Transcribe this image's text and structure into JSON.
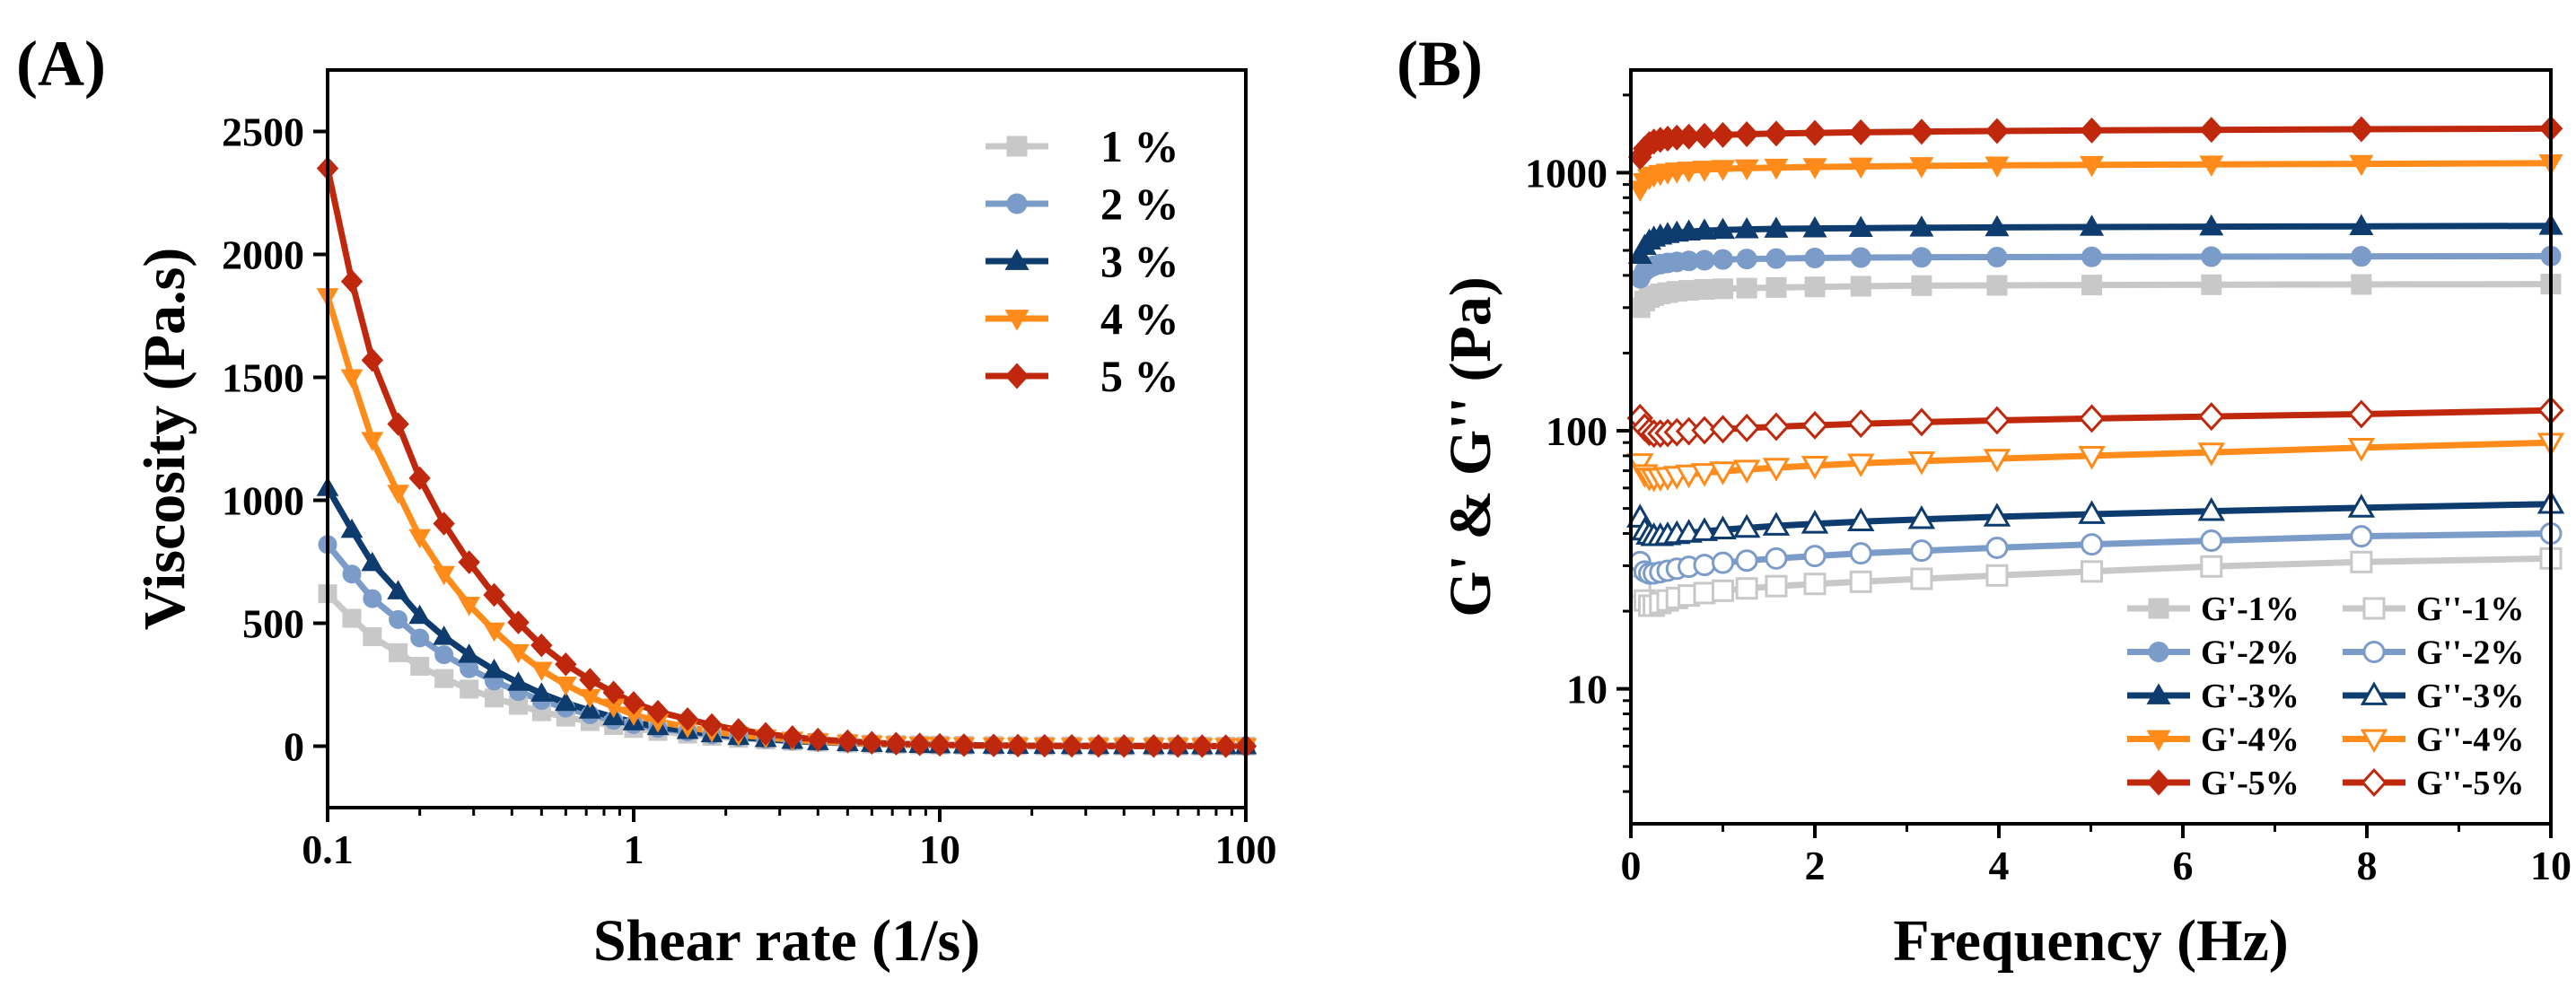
{
  "chart_data": [
    {
      "panel": "(A)",
      "type": "line",
      "xlabel": "Shear rate (1/s)",
      "ylabel": "Viscosity (Pa.s)",
      "xscale": "log",
      "xlim": [
        0.1,
        100
      ],
      "ylim": [
        -250,
        2750
      ],
      "xticks": [
        "0.1",
        "1",
        "10",
        "100"
      ],
      "yticks": [
        "0",
        "500",
        "1000",
        "1500",
        "2000",
        "2500"
      ],
      "legend_position": "top-right",
      "x": [
        0.1,
        0.12,
        0.14,
        0.17,
        0.2,
        0.24,
        0.29,
        0.35,
        0.42,
        0.5,
        0.6,
        0.72,
        0.86,
        1.0,
        1.2,
        1.5,
        1.8,
        2.2,
        2.7,
        3.3,
        4.0,
        5.0,
        6.0,
        7.2,
        8.6,
        10,
        12,
        15,
        18,
        22,
        27,
        33,
        40,
        50,
        60,
        72,
        86,
        100
      ],
      "series": [
        {
          "name": "1 %",
          "color": "#c8c8c8",
          "marker": "square",
          "values": [
            620,
            520,
            445,
            380,
            325,
            275,
            232,
            196,
            166,
            140,
            118,
            100,
            84,
            72,
            60,
            49,
            40,
            32,
            25,
            20,
            16,
            12,
            9,
            7,
            5.5,
            4.5,
            3.5,
            2.7,
            2.1,
            1.6,
            1.2,
            0.9,
            0.7,
            0.5,
            0.4,
            0.3,
            0.2,
            0.15
          ]
        },
        {
          "name": "2 %",
          "color": "#7b9cc8",
          "marker": "circle",
          "values": [
            820,
            700,
            600,
            515,
            440,
            372,
            315,
            265,
            222,
            186,
            155,
            128,
            105,
            88,
            72,
            58,
            46,
            36,
            28,
            21,
            16,
            12,
            9,
            7,
            5.2,
            4,
            3,
            2.2,
            1.7,
            1.3,
            1,
            0.7,
            0.5,
            0.4,
            0.3,
            0.2,
            0.15,
            0.1
          ]
        },
        {
          "name": "3 %",
          "color": "#0e3c6e",
          "marker": "triangle",
          "values": [
            1050,
            880,
            745,
            630,
            530,
            445,
            372,
            310,
            258,
            214,
            176,
            145,
            118,
            97,
            78,
            62,
            49,
            38,
            29,
            22,
            17,
            13,
            9.5,
            7,
            5.3,
            4,
            3,
            2.3,
            1.7,
            1.3,
            1,
            0.7,
            0.5,
            0.4,
            0.3,
            0.2,
            0.15,
            0.1
          ]
        },
        {
          "name": "4 %",
          "color": "#ff8c1a",
          "marker": "triangle-down",
          "values": [
            1830,
            1500,
            1245,
            1030,
            850,
            700,
            575,
            470,
            382,
            310,
            250,
            200,
            160,
            128,
            100,
            78,
            60,
            46,
            35,
            26,
            19,
            14,
            10,
            7.5,
            5.5,
            4,
            3,
            2.2,
            1.6,
            1.2,
            0.9,
            0.6,
            0.45,
            0.33,
            0.24,
            0.17,
            0.12,
            0.09
          ]
        },
        {
          "name": "5 %",
          "color": "#c0280d",
          "marker": "diamond",
          "values": [
            2350,
            1890,
            1570,
            1310,
            1090,
            905,
            748,
            615,
            503,
            410,
            333,
            270,
            218,
            176,
            140,
            110,
            86,
            66,
            50,
            37,
            27,
            20,
            14,
            10,
            7.5,
            5.5,
            4,
            3,
            2.2,
            1.6,
            1.2,
            0.85,
            0.62,
            0.45,
            0.33,
            0.24,
            0.17,
            0.12
          ]
        }
      ]
    },
    {
      "panel": "(B)",
      "type": "line",
      "xlabel": "Frequency (Hz)",
      "ylabel": "G' & G'' (Pa)",
      "yscale": "log",
      "xlim": [
        0,
        10
      ],
      "ylim": [
        3,
        2500
      ],
      "xticks": [
        "0",
        "2",
        "4",
        "6",
        "8",
        "10"
      ],
      "yticks": [
        "10",
        "100",
        "1000"
      ],
      "legend_position": "bottom-right",
      "legend_columns": 2,
      "x": [
        0.1,
        0.15,
        0.2,
        0.25,
        0.32,
        0.4,
        0.5,
        0.63,
        0.8,
        1.0,
        1.26,
        1.58,
        2.0,
        2.5,
        3.16,
        3.98,
        5.01,
        6.31,
        7.94,
        10
      ],
      "series": [
        {
          "name": "G'-1%",
          "color": "#c8c8c8",
          "marker": "square",
          "filled": true,
          "values": [
            300,
            318,
            328,
            334,
            339,
            343,
            347,
            350,
            353,
            355,
            357,
            359,
            361,
            363,
            365,
            366,
            367,
            368,
            369,
            370
          ]
        },
        {
          "name": "G''-1%",
          "color": "#c8c8c8",
          "marker": "square",
          "filled": false,
          "values": [
            25,
            22,
            21,
            21,
            21.5,
            22,
            22.5,
            23,
            23.5,
            24,
            24.5,
            25,
            25.5,
            26,
            26.7,
            27.5,
            28.5,
            29.8,
            31,
            32
          ]
        },
        {
          "name": "G'-2%",
          "color": "#7b9cc8",
          "marker": "circle",
          "filled": true,
          "values": [
            390,
            415,
            428,
            436,
            442,
            447,
            451,
            455,
            458,
            461,
            463,
            465,
            467,
            469,
            470,
            471,
            472,
            473,
            474,
            475
          ]
        },
        {
          "name": "G''-2%",
          "color": "#7b9cc8",
          "marker": "circle",
          "filled": false,
          "values": [
            31,
            28.5,
            28,
            28,
            28.3,
            28.7,
            29.2,
            29.7,
            30.2,
            30.8,
            31.4,
            32,
            32.7,
            33.5,
            34.3,
            35.2,
            36.3,
            37.5,
            39,
            40
          ]
        },
        {
          "name": "G'-3%",
          "color": "#0e3c6e",
          "marker": "triangle",
          "filled": true,
          "values": [
            480,
            520,
            545,
            560,
            570,
            578,
            585,
            591,
            596,
            600,
            603,
            606,
            608,
            610,
            612,
            614,
            616,
            618,
            620,
            622
          ]
        },
        {
          "name": "G''-3%",
          "color": "#0e3c6e",
          "marker": "triangle",
          "filled": false,
          "values": [
            46,
            41,
            39.5,
            39,
            39,
            39.3,
            39.7,
            40.2,
            40.8,
            41.4,
            42,
            42.8,
            43.6,
            44.5,
            45.4,
            46.4,
            47.5,
            48.8,
            50.3,
            52
          ]
        },
        {
          "name": "G'-4%",
          "color": "#ff8c1a",
          "marker": "triangle-down",
          "filled": true,
          "values": [
            860,
            920,
            955,
            975,
            990,
            1002,
            1012,
            1020,
            1028,
            1035,
            1041,
            1047,
            1052,
            1057,
            1062,
            1067,
            1072,
            1077,
            1082,
            1088
          ]
        },
        {
          "name": "G''-4%",
          "color": "#ff8c1a",
          "marker": "triangle-down",
          "filled": false,
          "values": [
            75,
            68,
            66,
            65.5,
            65.8,
            66.3,
            67,
            67.8,
            68.7,
            69.7,
            70.8,
            72,
            73.3,
            74.8,
            76.3,
            78,
            80,
            82.5,
            86,
            90
          ]
        },
        {
          "name": "G'-5%",
          "color": "#c0280d",
          "marker": "diamond",
          "filled": true,
          "values": [
            1150,
            1240,
            1290,
            1320,
            1340,
            1355,
            1368,
            1380,
            1390,
            1400,
            1410,
            1418,
            1426,
            1434,
            1442,
            1450,
            1458,
            1466,
            1474,
            1482
          ]
        },
        {
          "name": "G''-5%",
          "color": "#c0280d",
          "marker": "diamond",
          "filled": false,
          "values": [
            112,
            103,
            99,
            97.5,
            97.5,
            98,
            98.7,
            99.5,
            100.4,
            101.4,
            102.5,
            103.7,
            105,
            106.5,
            108,
            109.7,
            111.5,
            113.6,
            116,
            120
          ]
        }
      ]
    }
  ]
}
